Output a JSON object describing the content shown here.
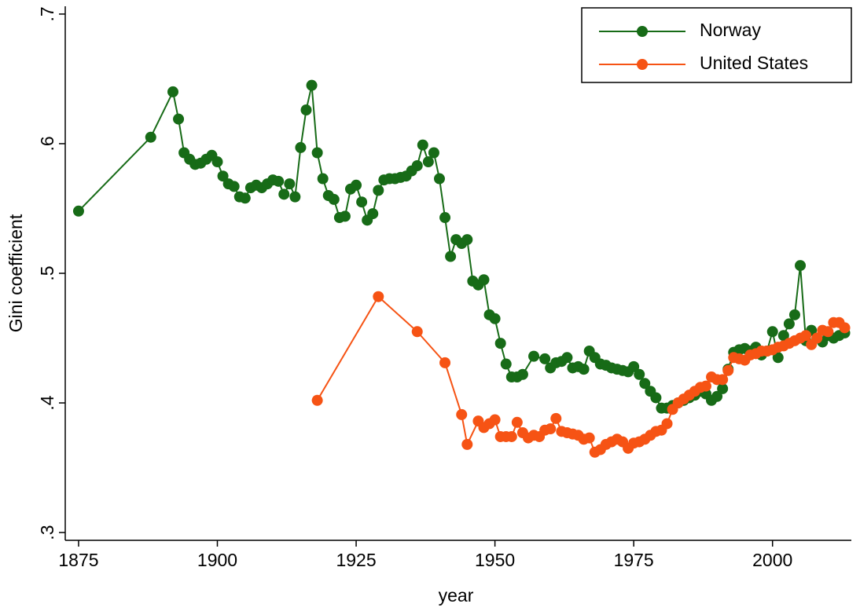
{
  "chart_data": {
    "type": "line",
    "x_label": "year",
    "y_label": "Gini coefficient",
    "xlim": [
      1872.6,
      2014.2
    ],
    "ylim": [
      0.294,
      0.706
    ],
    "xticks": [
      1875,
      1900,
      1925,
      1950,
      1975,
      2000
    ],
    "yticks": [
      {
        "value": 0.3,
        "label": ".3"
      },
      {
        "value": 0.4,
        "label": ".4"
      },
      {
        "value": 0.5,
        "label": ".5"
      },
      {
        "value": 0.6,
        "label": ".6"
      },
      {
        "value": 0.7,
        "label": ".7"
      }
    ],
    "grid": false,
    "legend": "top-right",
    "series": [
      {
        "name": "Norway",
        "color": "#176b17",
        "x": [
          1875,
          1888,
          1892,
          1893,
          1894,
          1895,
          1896,
          1897,
          1898,
          1899,
          1900,
          1901,
          1902,
          1903,
          1904,
          1905,
          1906,
          1907,
          1908,
          1909,
          1910,
          1911,
          1912,
          1913,
          1914,
          1915,
          1916,
          1917,
          1918,
          1919,
          1920,
          1921,
          1922,
          1923,
          1924,
          1925,
          1926,
          1927,
          1928,
          1929,
          1930,
          1931,
          1932,
          1933,
          1934,
          1935,
          1936,
          1937,
          1938,
          1939,
          1940,
          1941,
          1942,
          1943,
          1944,
          1945,
          1946,
          1947,
          1948,
          1949,
          1950,
          1951,
          1952,
          1953,
          1954,
          1955,
          1957,
          1959,
          1960,
          1961,
          1962,
          1963,
          1964,
          1965,
          1966,
          1967,
          1968,
          1969,
          1970,
          1971,
          1972,
          1973,
          1974,
          1975,
          1976,
          1977,
          1978,
          1979,
          1980,
          1981,
          1982,
          1983,
          1984,
          1985,
          1986,
          1987,
          1988,
          1989,
          1990,
          1991,
          1992,
          1993,
          1994,
          1995,
          1996,
          1997,
          1998,
          1999,
          2000,
          2001,
          2002,
          2003,
          2004,
          2005,
          2006,
          2007,
          2008,
          2009,
          2010,
          2011,
          2012,
          2013
        ],
        "values": [
          0.548,
          0.605,
          0.64,
          0.619,
          0.593,
          0.588,
          0.584,
          0.585,
          0.588,
          0.591,
          0.586,
          0.575,
          0.569,
          0.567,
          0.559,
          0.558,
          0.566,
          0.568,
          0.566,
          0.569,
          0.572,
          0.571,
          0.561,
          0.569,
          0.559,
          0.597,
          0.626,
          0.645,
          0.593,
          0.573,
          0.56,
          0.557,
          0.543,
          0.544,
          0.565,
          0.568,
          0.555,
          0.541,
          0.546,
          0.564,
          0.572,
          0.573,
          0.573,
          0.574,
          0.575,
          0.579,
          0.583,
          0.599,
          0.586,
          0.593,
          0.573,
          0.543,
          0.513,
          0.526,
          0.523,
          0.526,
          0.494,
          0.491,
          0.495,
          0.468,
          0.465,
          0.446,
          0.43,
          0.42,
          0.42,
          0.422,
          0.436,
          0.434,
          0.427,
          0.431,
          0.432,
          0.435,
          0.427,
          0.428,
          0.426,
          0.44,
          0.435,
          0.43,
          0.429,
          0.427,
          0.426,
          0.425,
          0.424,
          0.428,
          0.422,
          0.415,
          0.409,
          0.404,
          0.396,
          0.396,
          0.398,
          0.4,
          0.402,
          0.404,
          0.406,
          0.409,
          0.407,
          0.402,
          0.405,
          0.411,
          0.426,
          0.439,
          0.441,
          0.442,
          0.44,
          0.443,
          0.437,
          0.44,
          0.455,
          0.435,
          0.452,
          0.461,
          0.468,
          0.506,
          0.448,
          0.456,
          0.45,
          0.447,
          0.452,
          0.45,
          0.452,
          0.454
        ]
      },
      {
        "name": "United States",
        "color": "#f65314",
        "x": [
          1918,
          1929,
          1936,
          1941,
          1944,
          1945,
          1947,
          1948,
          1949,
          1950,
          1951,
          1952,
          1953,
          1954,
          1955,
          1956,
          1957,
          1958,
          1959,
          1960,
          1961,
          1962,
          1963,
          1964,
          1965,
          1966,
          1967,
          1968,
          1969,
          1970,
          1971,
          1972,
          1973,
          1974,
          1975,
          1976,
          1977,
          1978,
          1979,
          1980,
          1981,
          1982,
          1983,
          1984,
          1985,
          1986,
          1987,
          1988,
          1989,
          1990,
          1991,
          1992,
          1993,
          1994,
          1995,
          1996,
          1997,
          1998,
          1999,
          2000,
          2001,
          2002,
          2003,
          2004,
          2005,
          2006,
          2007,
          2008,
          2009,
          2010,
          2011,
          2012,
          2013
        ],
        "values": [
          0.402,
          0.482,
          0.455,
          0.431,
          0.391,
          0.368,
          0.386,
          0.381,
          0.384,
          0.387,
          0.374,
          0.374,
          0.374,
          0.385,
          0.377,
          0.373,
          0.375,
          0.374,
          0.379,
          0.38,
          0.388,
          0.378,
          0.377,
          0.376,
          0.375,
          0.372,
          0.373,
          0.362,
          0.364,
          0.368,
          0.37,
          0.372,
          0.37,
          0.365,
          0.369,
          0.37,
          0.372,
          0.375,
          0.378,
          0.379,
          0.384,
          0.395,
          0.4,
          0.403,
          0.406,
          0.409,
          0.412,
          0.413,
          0.42,
          0.418,
          0.418,
          0.425,
          0.435,
          0.434,
          0.433,
          0.437,
          0.438,
          0.44,
          0.44,
          0.441,
          0.443,
          0.444,
          0.446,
          0.448,
          0.45,
          0.452,
          0.445,
          0.45,
          0.456,
          0.455,
          0.462,
          0.462,
          0.458
        ]
      }
    ]
  }
}
